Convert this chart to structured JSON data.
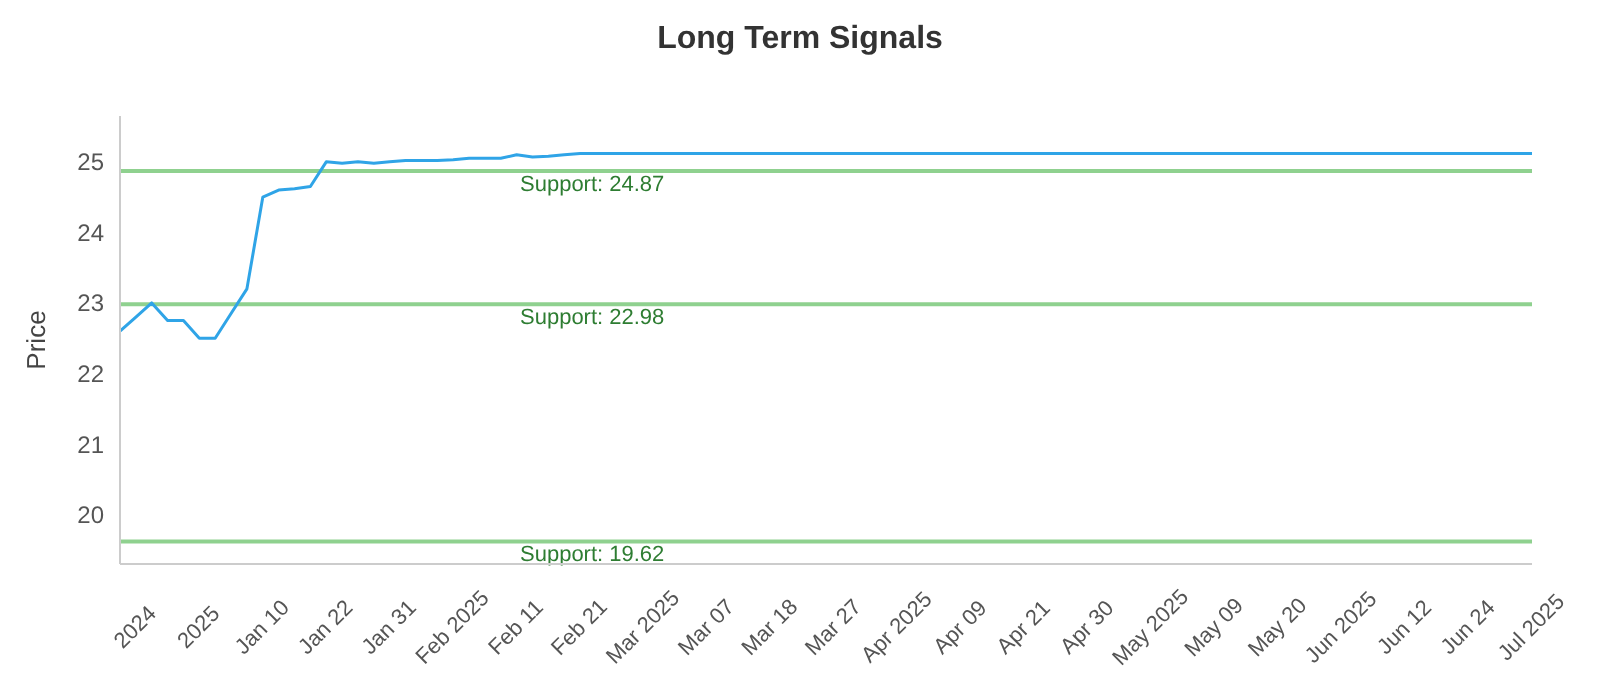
{
  "chart_data": {
    "type": "line",
    "title": "Long Term Signals",
    "ylabel": "Price",
    "categories": [
      null,
      "2024",
      null,
      null,
      null,
      "2025",
      null,
      null,
      null,
      "Jan 10",
      null,
      null,
      null,
      "Jan 22",
      null,
      null,
      null,
      "Jan 31",
      null,
      null,
      null,
      "Feb 2025",
      null,
      null,
      null,
      "Feb 11",
      null,
      null,
      null,
      "Feb 21",
      null,
      null,
      null,
      "Mar 2025",
      null,
      null,
      null,
      "Mar 07",
      null,
      null,
      null,
      "Mar 18",
      null,
      null,
      null,
      "Mar 27",
      null,
      null,
      null,
      "Apr 2025",
      null,
      null,
      null,
      "Apr 09",
      null,
      null,
      null,
      "Apr 21",
      null,
      null,
      null,
      "Apr 30",
      null,
      null,
      null,
      "May 2025",
      null,
      null,
      null,
      "May 09",
      null,
      null,
      null,
      "May 20",
      null,
      null,
      null,
      "Jun 2025",
      null,
      null,
      null,
      "Jun 12",
      null,
      null,
      null,
      "Jun 24",
      null,
      null,
      null,
      "Jul 2025"
    ],
    "series": [
      {
        "color": "#2fa4e7",
        "values": [
          22.6,
          22.8,
          23.0,
          22.75,
          22.75,
          22.5,
          22.5,
          22.85,
          23.2,
          24.5,
          24.6,
          24.62,
          24.65,
          25.0,
          24.98,
          25.0,
          24.98,
          25.0,
          25.02,
          25.02,
          25.02,
          25.03,
          25.05,
          25.05,
          25.05,
          25.1,
          25.07,
          25.08,
          25.1,
          25.12,
          25.12,
          25.12,
          25.12,
          25.12,
          25.12,
          25.12,
          25.12,
          25.12,
          25.12,
          25.12,
          25.12,
          25.12,
          25.12,
          25.12,
          25.12,
          25.12,
          25.12,
          25.12,
          25.12,
          25.12,
          25.12,
          25.12,
          25.12,
          25.12,
          25.12,
          25.12,
          25.12,
          25.12,
          25.12,
          25.12,
          25.12,
          25.12,
          25.12,
          25.12,
          25.12,
          25.12,
          25.12,
          25.12,
          25.12,
          25.12,
          25.12,
          25.12,
          25.12,
          25.12,
          25.12,
          25.12,
          25.12,
          25.12,
          25.12,
          25.12,
          25.12,
          25.12,
          25.12,
          25.12,
          25.12,
          25.12,
          25.12,
          25.12,
          25.12,
          25.12
        ]
      }
    ],
    "ylim": [
      19.3,
      25.65
    ],
    "yticks": [
      20,
      21,
      22,
      23,
      24,
      25
    ],
    "grid": false,
    "legend": false,
    "marker": "none",
    "line_style": "solid",
    "ref_lines": [
      {
        "axis": "y",
        "value": 24.87,
        "label": "Support: 24.87",
        "color": "#8fd18f"
      },
      {
        "axis": "y",
        "value": 22.98,
        "label": "Support: 22.98",
        "color": "#8fd18f"
      },
      {
        "axis": "y",
        "value": 19.62,
        "label": "Support: 19.62",
        "color": "#8fd18f"
      }
    ]
  }
}
